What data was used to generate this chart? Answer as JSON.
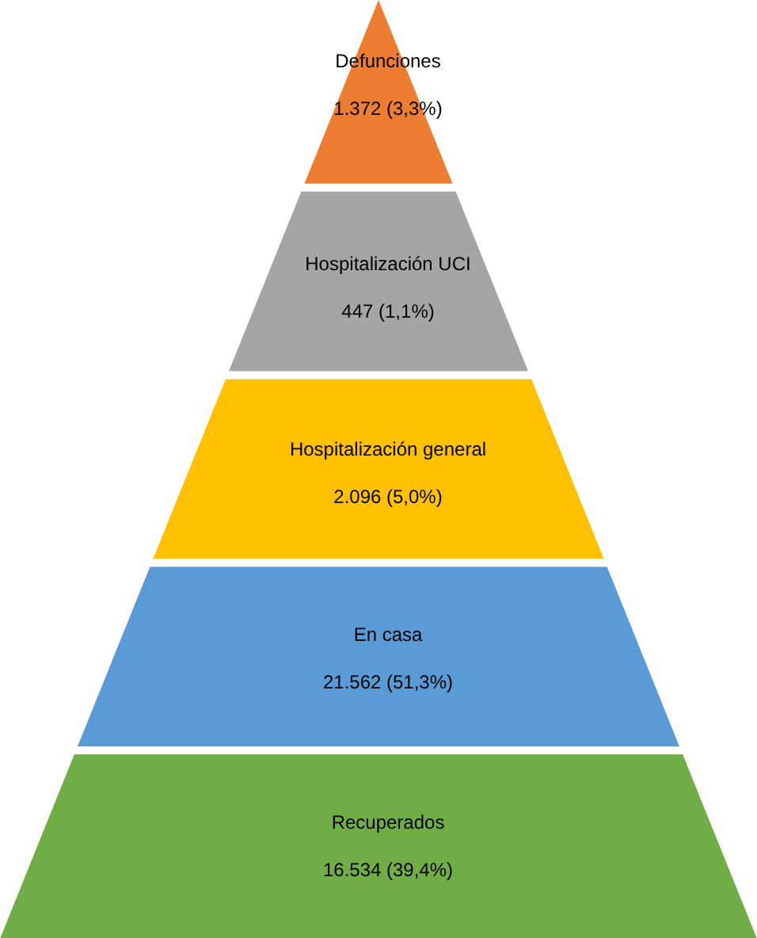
{
  "chart_data": {
    "type": "other",
    "categories": [
      "Defunciones",
      "Hospitalización UCI",
      "Hospitalización general",
      "En casa",
      "Recuperados"
    ],
    "values": [
      1372,
      447,
      2096,
      21562,
      16534
    ],
    "value_labels": [
      "1.372 (3,3%)",
      "447 (1,1%)",
      "2.096 (5,0%)",
      "21.562 (51,3%)",
      "16.534 (39,4%)"
    ],
    "colors": [
      "#ed7d31",
      "#a5a5a5",
      "#ffc000",
      "#5b9bd5",
      "#70ad47"
    ]
  }
}
